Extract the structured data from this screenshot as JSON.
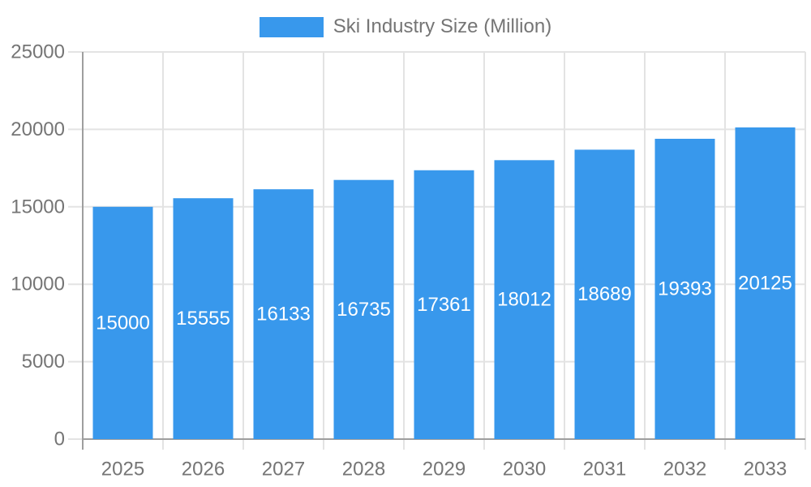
{
  "legend": {
    "label": "Ski Industry Size (Million)"
  },
  "colors": {
    "bar": "#3898EC",
    "grid": "#E3E3E3",
    "axis": "#9E9E9E",
    "text": "#757575",
    "value_label": "#FFFFFF",
    "background": "#FFFFFF"
  },
  "chart_data": {
    "type": "bar",
    "title": "Ski Industry Size (Million)",
    "series_name": "Ski Industry Size (Million)",
    "categories": [
      "2025",
      "2026",
      "2027",
      "2028",
      "2029",
      "2030",
      "2031",
      "2032",
      "2033"
    ],
    "values": [
      15000,
      15555,
      16133,
      16735,
      17361,
      18012,
      18689,
      19393,
      20125
    ],
    "xlabel": "",
    "ylabel": "",
    "ylim": [
      0,
      25000
    ],
    "yticks": [
      0,
      5000,
      10000,
      15000,
      20000,
      25000
    ],
    "grid": true,
    "legend_position": "top-center",
    "value_labels": "inside-center"
  }
}
